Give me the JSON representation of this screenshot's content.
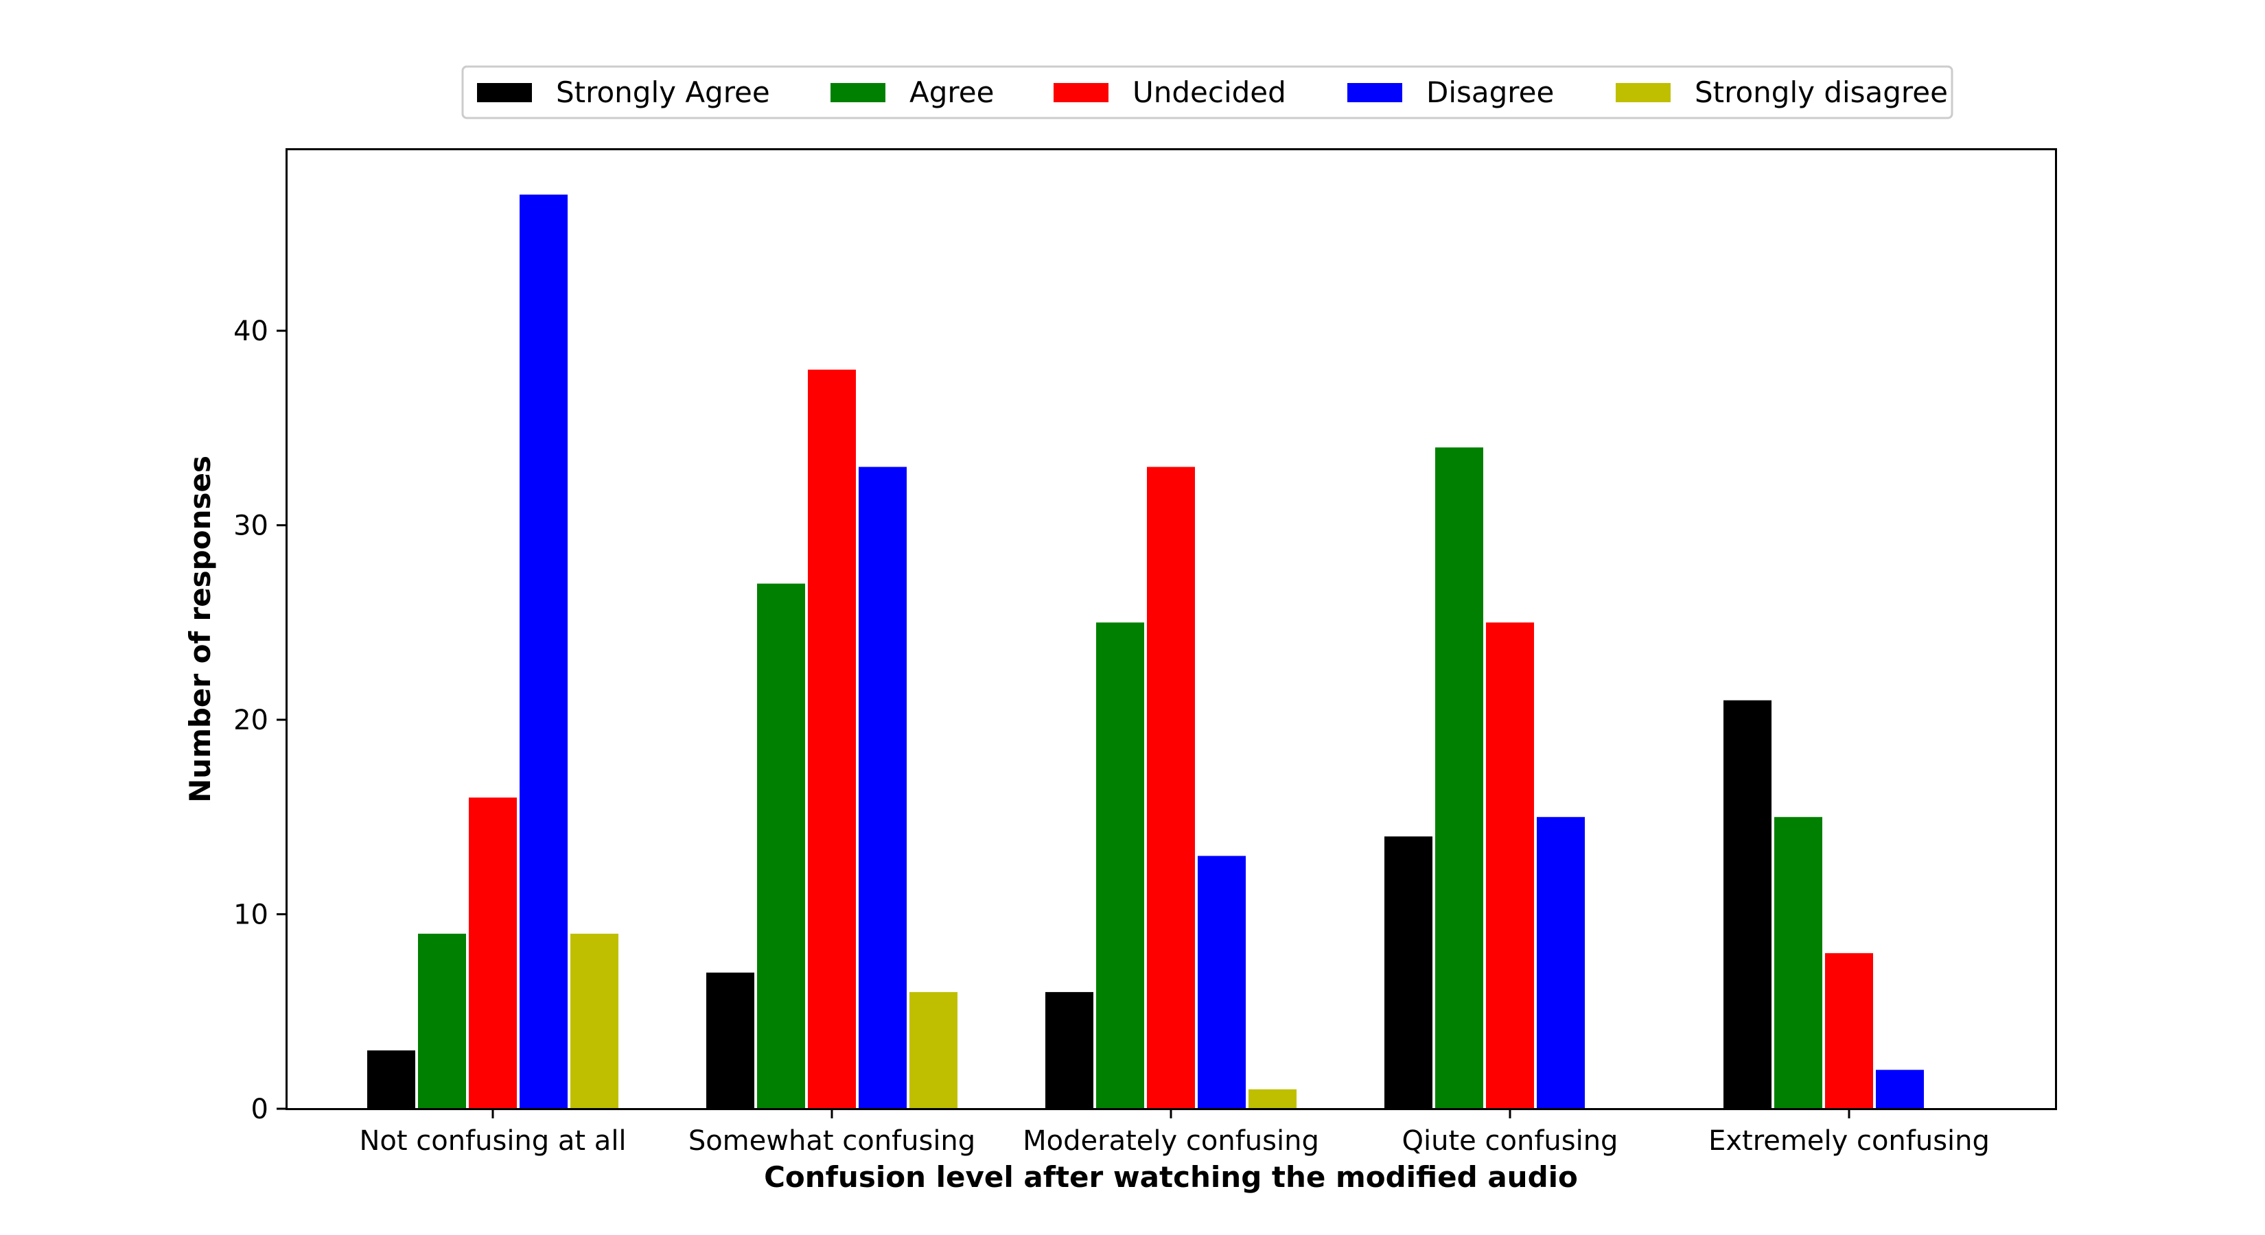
{
  "chart_data": {
    "type": "bar",
    "title": "",
    "xlabel": "Confusion level after watching the modified audio",
    "ylabel": "Number of responses",
    "categories": [
      "Not confusing at all",
      "Somewhat confusing",
      "Moderately confusing",
      "Qiute confusing",
      "Extremely confusing"
    ],
    "series": [
      {
        "name": "Strongly Agree",
        "color": "#000000",
        "values": [
          3,
          7,
          6,
          14,
          21
        ]
      },
      {
        "name": "Agree",
        "color": "#008000",
        "values": [
          9,
          27,
          25,
          34,
          15
        ]
      },
      {
        "name": "Undecided",
        "color": "#ff0000",
        "values": [
          16,
          38,
          33,
          25,
          8
        ]
      },
      {
        "name": "Disagree",
        "color": "#0000ff",
        "values": [
          47,
          33,
          13,
          15,
          2
        ]
      },
      {
        "name": "Strongly disagree",
        "color": "#bfbf00",
        "values": [
          9,
          6,
          1,
          0,
          0
        ]
      }
    ],
    "ylim": [
      0,
      49.35
    ],
    "yticks": [
      0,
      10,
      20,
      30,
      40
    ],
    "grid": false,
    "legend": {
      "placement": "top-center",
      "columns": 5
    }
  }
}
